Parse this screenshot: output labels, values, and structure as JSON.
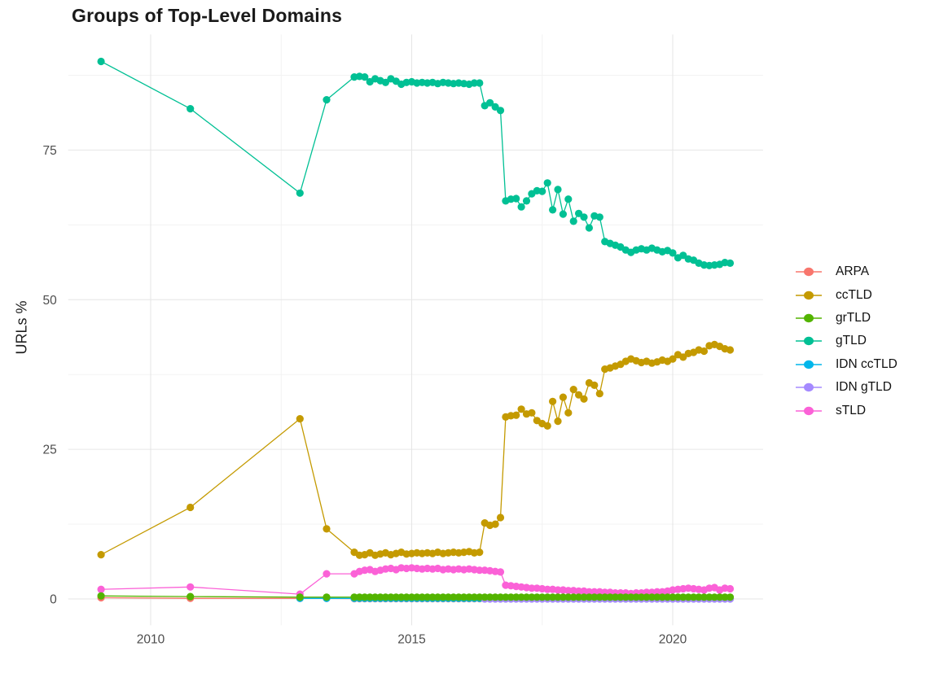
{
  "chart_data": {
    "type": "line",
    "title": "Groups of Top-Level Domains",
    "xlabel": "",
    "ylabel": "URLs %",
    "legend_position": "right",
    "grid": true,
    "x_axis": {
      "lim": [
        2008.42,
        2021.73
      ],
      "ticks": [
        2010,
        2015,
        2020
      ],
      "tick_labels": [
        "2010",
        "2015",
        "2020"
      ],
      "minor": [
        2012.5,
        2017.5
      ]
    },
    "y_axis": {
      "lim": [
        -4.4,
        94.3
      ],
      "ticks": [
        0,
        25,
        50,
        75
      ],
      "tick_labels": [
        "0",
        "25",
        "50",
        "75"
      ],
      "minor": [
        12.5,
        37.5,
        62.5,
        87.5
      ]
    },
    "dense_x": {
      "from": 2013.9,
      "to": 2021.1,
      "step": 0.1
    },
    "series": [
      {
        "name": "ARPA",
        "color": "#F8766D",
        "points": [
          [
            2009.05,
            0.2
          ],
          [
            2010.76,
            0.1
          ],
          [
            2012.86,
            0.1
          ],
          [
            2013.37,
            0.1
          ]
        ],
        "dense_const": 0.05
      },
      {
        "name": "ccTLD",
        "color": "#C49A00",
        "points": [
          [
            2009.05,
            7.4
          ],
          [
            2010.76,
            15.3
          ],
          [
            2012.86,
            30.1
          ],
          [
            2013.37,
            11.7
          ]
        ],
        "dense_y": [
          7.8,
          7.3,
          7.4,
          7.7,
          7.3,
          7.5,
          7.7,
          7.4,
          7.6,
          7.8,
          7.5,
          7.6,
          7.7,
          7.6,
          7.7,
          7.6,
          7.8,
          7.6,
          7.7,
          7.8,
          7.7,
          7.8,
          7.9,
          7.7,
          7.8,
          12.7,
          12.3,
          12.5,
          13.6,
          30.4,
          30.6,
          30.7,
          31.7,
          30.9,
          31.1,
          29.8,
          29.3,
          28.9,
          33.0,
          29.7,
          33.7,
          31.1,
          35.0,
          34.1,
          33.4,
          36.1,
          35.7,
          34.3,
          38.4,
          38.6,
          38.9,
          39.2,
          39.7,
          40.1,
          39.8,
          39.5,
          39.7,
          39.4,
          39.6,
          39.9,
          39.7,
          40.1,
          40.8,
          40.4,
          41.0,
          41.2,
          41.6,
          41.4,
          42.3,
          42.5,
          42.2,
          41.8,
          41.6
        ]
      },
      {
        "name": "grTLD",
        "color": "#53B400",
        "points": [
          [
            2009.05,
            0.5
          ],
          [
            2010.76,
            0.4
          ],
          [
            2012.86,
            0.3
          ],
          [
            2013.37,
            0.3
          ]
        ],
        "dense_const": 0.3
      },
      {
        "name": "gTLD",
        "color": "#00C094",
        "points": [
          [
            2009.05,
            89.8
          ],
          [
            2010.76,
            81.9
          ],
          [
            2012.86,
            67.8
          ],
          [
            2013.37,
            83.4
          ]
        ],
        "dense_y": [
          87.2,
          87.3,
          87.2,
          86.4,
          86.9,
          86.6,
          86.3,
          86.9,
          86.5,
          86.0,
          86.3,
          86.4,
          86.2,
          86.3,
          86.2,
          86.3,
          86.1,
          86.3,
          86.2,
          86.1,
          86.2,
          86.1,
          86.0,
          86.2,
          86.2,
          82.4,
          82.9,
          82.2,
          81.6,
          66.5,
          66.8,
          66.9,
          65.5,
          66.5,
          67.7,
          68.2,
          68.1,
          69.5,
          65.0,
          68.4,
          64.3,
          66.8,
          63.1,
          64.4,
          63.8,
          62.0,
          64.0,
          63.8,
          59.7,
          59.4,
          59.1,
          58.8,
          58.3,
          57.9,
          58.3,
          58.5,
          58.3,
          58.6,
          58.3,
          58.0,
          58.2,
          57.8,
          57.0,
          57.4,
          56.8,
          56.6,
          56.1,
          55.8,
          55.7,
          55.8,
          55.9,
          56.2,
          56.1
        ]
      },
      {
        "name": "IDN ccTLD",
        "color": "#00B6EB",
        "points": [
          [
            2012.86,
            0.1
          ],
          [
            2013.37,
            0.1
          ]
        ],
        "dense_const": 0.1
      },
      {
        "name": "IDN gTLD",
        "color": "#A58AFF",
        "points": [],
        "dense_const": 0.0,
        "dense_from": 2016.4
      },
      {
        "name": "sTLD",
        "color": "#FB61D7",
        "points": [
          [
            2009.05,
            1.6
          ],
          [
            2010.76,
            2.0
          ],
          [
            2012.86,
            0.8
          ],
          [
            2013.37,
            4.2
          ]
        ],
        "dense_y": [
          4.2,
          4.6,
          4.8,
          4.9,
          4.6,
          4.8,
          5.0,
          5.1,
          4.9,
          5.2,
          5.1,
          5.2,
          5.1,
          5.0,
          5.1,
          5.0,
          5.1,
          4.9,
          5.0,
          4.9,
          5.0,
          4.9,
          5.0,
          4.9,
          4.8,
          4.8,
          4.7,
          4.6,
          4.5,
          2.3,
          2.2,
          2.1,
          2.0,
          1.9,
          1.8,
          1.8,
          1.7,
          1.6,
          1.6,
          1.5,
          1.5,
          1.4,
          1.4,
          1.3,
          1.3,
          1.2,
          1.2,
          1.2,
          1.1,
          1.1,
          1.0,
          1.0,
          1.0,
          0.9,
          1.0,
          1.0,
          1.1,
          1.1,
          1.2,
          1.2,
          1.3,
          1.5,
          1.6,
          1.7,
          1.8,
          1.7,
          1.6,
          1.5,
          1.8,
          1.9,
          1.5,
          1.8,
          1.7
        ]
      }
    ]
  }
}
